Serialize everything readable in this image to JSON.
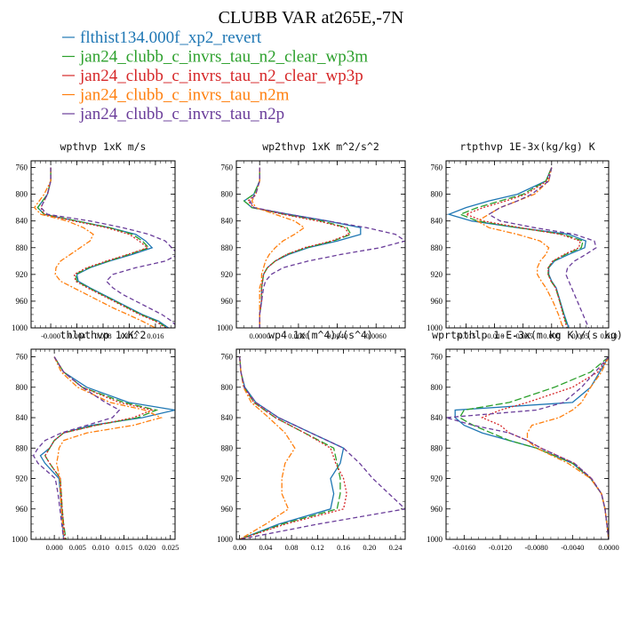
{
  "title": "CLUBB VAR at265E,-7N",
  "legend": [
    {
      "name": "flthist134.000f_xp2_revert",
      "color": "#1f77b4",
      "dash": "solid"
    },
    {
      "name": "jan24_clubb_c_invrs_tau_n2_clear_wp3m",
      "color": "#2ca02c",
      "dash": "longdash"
    },
    {
      "name": "jan24_clubb_c_invrs_tau_n2_clear_wp3p",
      "color": "#d62728",
      "dash": "dotted"
    },
    {
      "name": "jan24_clubb_c_invrs_tau_n2m",
      "color": "#ff7f0e",
      "dash": "dashdot"
    },
    {
      "name": "jan24_clubb_c_invrs_tau_n2p",
      "color": "#6a3d9a",
      "dash": "dashed"
    }
  ],
  "chart_data": [
    {
      "type": "line",
      "title": "wpthvp  1xK m/s",
      "ylim": [
        1000,
        750
      ],
      "yticks": [
        760,
        800,
        840,
        880,
        920,
        960,
        1000
      ],
      "xlim": [
        -0.003,
        0.019
      ],
      "xticks": [
        "-0.000",
        "0.004",
        "0.008",
        "0.012",
        "0.016"
      ],
      "xtick_values": [
        0,
        0.004,
        0.008,
        0.012,
        0.016
      ],
      "y": [
        760,
        780,
        800,
        820,
        830,
        840,
        850,
        860,
        870,
        880,
        890,
        900,
        910,
        920,
        930,
        940,
        950,
        960,
        970,
        980,
        990,
        1000
      ],
      "series": [
        [
          0.0,
          0.0,
          -0.0005,
          -0.002,
          -0.001,
          0.004,
          0.009,
          0.013,
          0.0145,
          0.0155,
          0.0125,
          0.009,
          0.006,
          0.004,
          0.0042,
          0.006,
          0.008,
          0.01,
          0.012,
          0.014,
          0.0165,
          0.018
        ],
        [
          0.0,
          0.0,
          -0.0005,
          -0.002,
          -0.001,
          0.004,
          0.009,
          0.0125,
          0.014,
          0.015,
          0.012,
          0.0088,
          0.0058,
          0.0038,
          0.004,
          0.0058,
          0.0078,
          0.0098,
          0.0118,
          0.0138,
          0.0162,
          0.0178
        ],
        [
          0.0,
          0.0,
          -0.0005,
          -0.0015,
          -0.001,
          0.0035,
          0.0085,
          0.012,
          0.0135,
          0.0148,
          0.0118,
          0.0085,
          0.0055,
          0.0036,
          0.0038,
          0.0056,
          0.0076,
          0.0096,
          0.0116,
          0.0136,
          0.016,
          0.0176
        ],
        [
          0.0,
          0.0,
          -0.001,
          -0.0025,
          -0.0015,
          0.0025,
          0.005,
          0.0065,
          0.006,
          0.0045,
          0.003,
          0.0015,
          0.0008,
          0.0007,
          0.0015,
          0.0035,
          0.0055,
          0.0075,
          0.0095,
          0.0118,
          0.014,
          0.016
        ],
        [
          0.0,
          0.0,
          -0.0005,
          -0.0015,
          -0.0005,
          0.006,
          0.011,
          0.015,
          0.0175,
          0.0185,
          0.0195,
          0.0175,
          0.013,
          0.0095,
          0.0085,
          0.0095,
          0.011,
          0.013,
          0.015,
          0.017,
          0.0185,
          0.0195
        ]
      ]
    },
    {
      "type": "line",
      "title": "wp2thvp  1xK m^2/s^2",
      "ylim": [
        1000,
        750
      ],
      "yticks": [
        760,
        800,
        840,
        880,
        920,
        960,
        1000
      ],
      "xlim": [
        -0.0012,
        0.0075
      ],
      "xticks": [
        "0.0000",
        "0.0020",
        "0.0040",
        "0.0060"
      ],
      "xtick_values": [
        0,
        0.002,
        0.004,
        0.006
      ],
      "y": [
        760,
        780,
        800,
        810,
        820,
        830,
        840,
        850,
        860,
        870,
        880,
        890,
        900,
        910,
        920,
        930,
        940,
        960,
        980,
        1000
      ],
      "series": [
        [
          0.0,
          0.0,
          -0.0003,
          -0.0008,
          -0.0004,
          0.0015,
          0.0035,
          0.0052,
          0.0052,
          0.004,
          0.0025,
          0.0015,
          0.0008,
          0.0004,
          0.0002,
          0.00015,
          0.0001,
          0.0001,
          0.0,
          0.0
        ],
        [
          0.0,
          0.0,
          -0.0003,
          -0.0008,
          -0.0004,
          0.0013,
          0.0032,
          0.0045,
          0.0047,
          0.0038,
          0.0024,
          0.0014,
          0.0008,
          0.0004,
          0.0002,
          0.00015,
          0.0001,
          0.0001,
          0.0,
          0.0
        ],
        [
          0.0,
          0.0,
          -0.0002,
          -0.0006,
          -0.0003,
          0.0012,
          0.003,
          0.0044,
          0.0046,
          0.0037,
          0.0023,
          0.0014,
          0.0008,
          0.0004,
          0.0002,
          0.00015,
          0.0001,
          0.0001,
          0.0,
          0.0
        ],
        [
          0.0,
          0.0,
          -0.0002,
          -0.0004,
          -0.0002,
          0.0008,
          0.0018,
          0.0023,
          0.0018,
          0.0012,
          0.0008,
          0.0005,
          0.0003,
          0.0002,
          0.0001,
          0.0001,
          0.0,
          0.0,
          0.0,
          0.0
        ],
        [
          0.0,
          0.0,
          -0.0002,
          -0.0005,
          -0.0003,
          0.0015,
          0.0035,
          0.0055,
          0.007,
          0.0075,
          0.0062,
          0.0042,
          0.0025,
          0.0012,
          0.0006,
          0.0003,
          0.0002,
          0.0001,
          0.0,
          0.0
        ]
      ]
    },
    {
      "type": "line",
      "title": "rtpthvp  1E-3x(kg/kg) K",
      "ylim": [
        1000,
        750
      ],
      "yticks": [
        760,
        800,
        840,
        880,
        920,
        960,
        1000
      ],
      "xlim": [
        -0.0185,
        0.01
      ],
      "xticks": [
        "-0.015",
        "-0.010",
        "-0.005",
        "0.000",
        "0.005",
        "0.010"
      ],
      "xtick_values": [
        -0.015,
        -0.01,
        -0.005,
        0,
        0.005,
        0.01
      ],
      "y": [
        760,
        780,
        800,
        810,
        820,
        830,
        840,
        850,
        860,
        870,
        880,
        890,
        900,
        910,
        920,
        930,
        940,
        960,
        980,
        1000
      ],
      "series": [
        [
          0.0,
          -0.001,
          -0.006,
          -0.011,
          -0.015,
          -0.018,
          -0.014,
          -0.006,
          0.003,
          0.006,
          0.0058,
          0.003,
          0.0005,
          -0.0005,
          -0.0005,
          0.0,
          0.0008,
          0.0015,
          0.0022,
          0.003
        ],
        [
          0.0,
          -0.001,
          -0.005,
          -0.009,
          -0.013,
          -0.016,
          -0.013,
          -0.006,
          0.002,
          0.0055,
          0.0052,
          0.0025,
          0.0003,
          -0.0006,
          -0.0006,
          -0.0001,
          0.0007,
          0.0014,
          0.0021,
          0.0028
        ],
        [
          0.0,
          -0.0008,
          -0.0045,
          -0.008,
          -0.012,
          -0.015,
          -0.012,
          -0.0055,
          0.0015,
          0.005,
          0.0048,
          0.0022,
          0.0002,
          -0.0006,
          -0.0006,
          -0.0001,
          0.0007,
          0.0014,
          0.002,
          0.0027
        ],
        [
          0.0,
          -0.0005,
          -0.003,
          -0.006,
          -0.009,
          -0.011,
          -0.013,
          -0.011,
          -0.006,
          -0.002,
          -0.0005,
          -0.001,
          -0.002,
          -0.0025,
          -0.0025,
          -0.0018,
          -0.001,
          0.0002,
          0.0012,
          0.002
        ],
        [
          0.0,
          -0.0005,
          -0.0035,
          -0.006,
          -0.009,
          -0.011,
          -0.009,
          -0.003,
          0.004,
          0.0075,
          0.0078,
          0.006,
          0.004,
          0.0028,
          0.0025,
          0.003,
          0.0035,
          0.0045,
          0.0055,
          0.0065
        ]
      ]
    },
    {
      "type": "line",
      "title": "thlpthvp  1xK^2",
      "ylim": [
        1000,
        750
      ],
      "yticks": [
        760,
        800,
        840,
        880,
        920,
        960,
        1000
      ],
      "xlim": [
        -0.005,
        0.026
      ],
      "xticks": [
        "0.000",
        "0.005",
        "0.010",
        "0.015",
        "0.020",
        "0.025"
      ],
      "xtick_values": [
        0,
        0.005,
        0.01,
        0.015,
        0.02,
        0.025
      ],
      "y": [
        760,
        780,
        800,
        820,
        830,
        840,
        850,
        860,
        870,
        880,
        890,
        900,
        920,
        940,
        960,
        980,
        1000
      ],
      "series": [
        [
          0.0,
          0.002,
          0.007,
          0.016,
          0.026,
          0.019,
          0.008,
          0.002,
          0.0,
          -0.001,
          -0.003,
          -0.002,
          0.001,
          0.0013,
          0.0015,
          0.0018,
          0.002
        ],
        [
          0.0,
          0.002,
          0.006,
          0.015,
          0.022,
          0.018,
          0.009,
          0.002,
          0.0,
          -0.001,
          -0.002,
          -0.001,
          0.0013,
          0.0015,
          0.0017,
          0.002,
          0.0025
        ],
        [
          0.0,
          0.002,
          0.006,
          0.014,
          0.021,
          0.017,
          0.009,
          0.002,
          0.0,
          -0.001,
          -0.002,
          -0.001,
          0.0013,
          0.0015,
          0.0017,
          0.002,
          0.0023
        ],
        [
          0.0,
          0.0015,
          0.005,
          0.012,
          0.0195,
          0.023,
          0.017,
          0.007,
          0.002,
          0.001,
          0.0008,
          0.0005,
          0.0012,
          0.0013,
          0.0015,
          0.0018,
          0.002
        ],
        [
          0.0,
          0.002,
          0.006,
          0.011,
          0.014,
          0.0125,
          0.007,
          0.0015,
          -0.002,
          -0.0035,
          -0.0045,
          -0.0035,
          0.0002,
          0.0008,
          0.0012,
          0.0016,
          0.002
        ]
      ]
    },
    {
      "type": "line",
      "title": "wp4  1x(m^4)/(s^4)",
      "ylim": [
        1000,
        750
      ],
      "yticks": [
        760,
        800,
        840,
        880,
        920,
        960,
        1000
      ],
      "xlim": [
        -0.005,
        0.255
      ],
      "xticks": [
        "0.00",
        "0.04",
        "0.08",
        "0.12",
        "0.16",
        "0.20",
        "0.24"
      ],
      "xtick_values": [
        0,
        0.04,
        0.08,
        0.12,
        0.16,
        0.2,
        0.24
      ],
      "y": [
        760,
        780,
        800,
        820,
        840,
        860,
        880,
        900,
        920,
        940,
        960,
        980,
        1000
      ],
      "series": [
        [
          0.0,
          0.002,
          0.008,
          0.025,
          0.06,
          0.11,
          0.16,
          0.155,
          0.14,
          0.145,
          0.14,
          0.06,
          0.0
        ],
        [
          0.0,
          0.002,
          0.007,
          0.022,
          0.055,
          0.1,
          0.145,
          0.15,
          0.155,
          0.155,
          0.15,
          0.065,
          0.0
        ],
        [
          0.0,
          0.002,
          0.007,
          0.022,
          0.055,
          0.1,
          0.14,
          0.148,
          0.16,
          0.165,
          0.16,
          0.07,
          0.0
        ],
        [
          0.0,
          0.002,
          0.006,
          0.018,
          0.045,
          0.07,
          0.085,
          0.07,
          0.065,
          0.065,
          0.075,
          0.04,
          0.0
        ],
        [
          0.0,
          0.002,
          0.007,
          0.025,
          0.06,
          0.11,
          0.16,
          0.185,
          0.205,
          0.23,
          0.255,
          0.12,
          0.0
        ]
      ]
    },
    {
      "type": "line",
      "title": "wprtpthlp  1-E-3x(m kg K)/(s kg)",
      "ylim": [
        1000,
        750
      ],
      "yticks": [
        760,
        800,
        840,
        880,
        920,
        960,
        1000
      ],
      "xlim": [
        -0.018,
        0.0
      ],
      "xticks": [
        "-0.0160",
        "-0.0120",
        "-0.0080",
        "-0.0040",
        "0.0000"
      ],
      "xtick_values": [
        -0.016,
        -0.012,
        -0.008,
        -0.004,
        0
      ],
      "y": [
        760,
        780,
        800,
        820,
        830,
        840,
        850,
        860,
        870,
        880,
        900,
        920,
        940,
        960,
        980,
        1000
      ],
      "series": [
        [
          0.0,
          -0.001,
          -0.002,
          -0.004,
          -0.017,
          -0.017,
          -0.016,
          -0.014,
          -0.011,
          -0.008,
          -0.004,
          -0.002,
          -0.0008,
          -0.0004,
          -0.0002,
          0.0
        ],
        [
          0.0,
          -0.002,
          -0.006,
          -0.011,
          -0.016,
          -0.0165,
          -0.015,
          -0.013,
          -0.011,
          -0.008,
          -0.004,
          -0.002,
          -0.0008,
          -0.0004,
          -0.0002,
          0.0
        ],
        [
          0.0,
          -0.0012,
          -0.004,
          -0.009,
          -0.012,
          -0.014,
          -0.012,
          -0.011,
          -0.009,
          -0.0075,
          -0.0038,
          -0.0019,
          -0.0008,
          -0.0004,
          -0.0002,
          0.0
        ],
        [
          0.0,
          -0.0008,
          -0.002,
          -0.003,
          -0.004,
          -0.0055,
          -0.0085,
          -0.009,
          -0.009,
          -0.008,
          -0.0045,
          -0.002,
          -0.0008,
          -0.0004,
          -0.0002,
          0.0
        ],
        [
          0.0,
          -0.0015,
          -0.003,
          -0.005,
          -0.008,
          -0.018,
          -0.015,
          -0.011,
          -0.009,
          -0.0075,
          -0.0038,
          -0.0019,
          -0.0008,
          -0.0004,
          -0.0002,
          0.0
        ]
      ]
    }
  ]
}
